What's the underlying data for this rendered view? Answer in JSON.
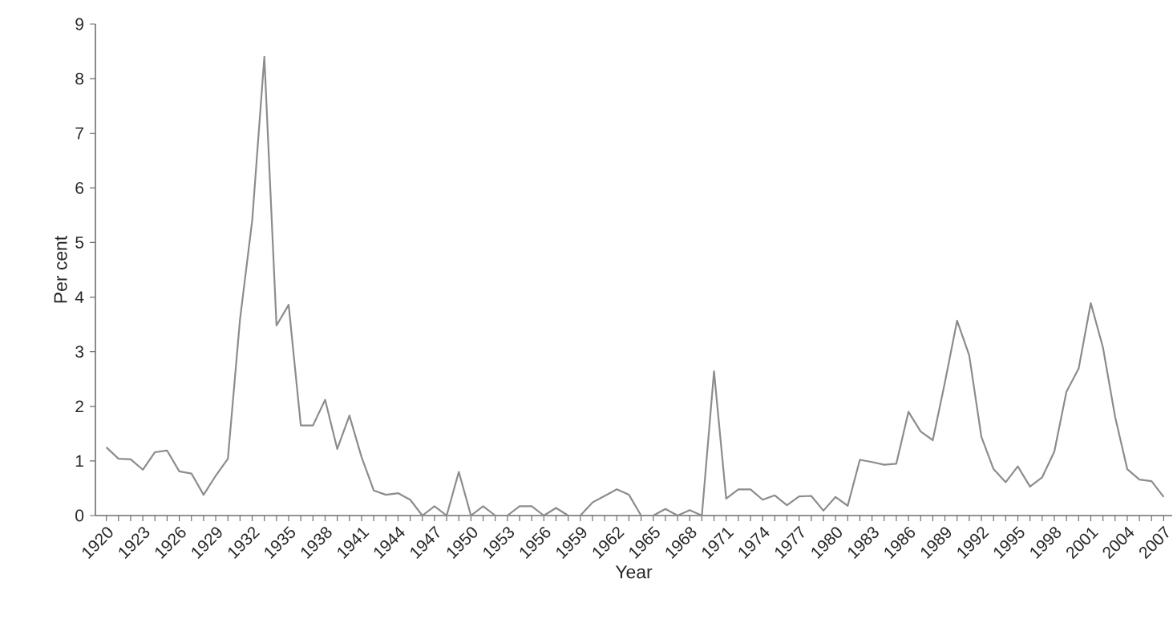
{
  "chart_data": {
    "type": "line",
    "xlabel": "Year",
    "ylabel": "Per cent",
    "x": [
      1920,
      1921,
      1922,
      1923,
      1924,
      1925,
      1926,
      1927,
      1928,
      1929,
      1930,
      1931,
      1932,
      1933,
      1934,
      1935,
      1936,
      1937,
      1938,
      1939,
      1940,
      1941,
      1942,
      1943,
      1944,
      1945,
      1946,
      1947,
      1948,
      1949,
      1950,
      1951,
      1952,
      1953,
      1954,
      1955,
      1956,
      1957,
      1958,
      1959,
      1960,
      1961,
      1962,
      1963,
      1964,
      1965,
      1966,
      1967,
      1968,
      1969,
      1970,
      1971,
      1972,
      1973,
      1974,
      1975,
      1976,
      1977,
      1978,
      1979,
      1980,
      1981,
      1982,
      1983,
      1984,
      1985,
      1986,
      1987,
      1988,
      1989,
      1990,
      1991,
      1992,
      1993,
      1994,
      1995,
      1996,
      1997,
      1998,
      1999,
      2000,
      2001,
      2002,
      2003,
      2004,
      2005,
      2006,
      2007
    ],
    "series": [
      {
        "color": "#8c8c8c",
        "values": [
          1.25,
          1.04,
          1.03,
          0.84,
          1.16,
          1.19,
          0.81,
          0.77,
          0.38,
          0.73,
          1.04,
          3.6,
          5.4,
          8.4,
          3.48,
          3.86,
          1.65,
          1.65,
          2.12,
          1.22,
          1.83,
          1.07,
          0.46,
          0.38,
          0.41,
          0.29,
          0.0,
          0.17,
          0.0,
          0.8,
          0.0,
          0.17,
          0.0,
          0.0,
          0.17,
          0.17,
          0.0,
          0.14,
          0.0,
          0.0,
          0.24,
          0.36,
          0.48,
          0.38,
          0.0,
          0.0,
          0.12,
          0.0,
          0.1,
          0.0,
          2.64,
          0.31,
          0.48,
          0.48,
          0.29,
          0.37,
          0.19,
          0.35,
          0.36,
          0.09,
          0.34,
          0.18,
          1.02,
          0.98,
          0.93,
          0.95,
          1.9,
          1.54,
          1.38,
          2.44,
          3.57,
          2.93,
          1.44,
          0.85,
          0.61,
          0.9,
          0.53,
          0.7,
          1.17,
          2.27,
          2.69,
          3.89,
          3.08,
          1.81,
          0.85,
          0.66,
          0.63,
          0.34
        ]
      }
    ],
    "xlim": [
      1919.1,
      2007.7
    ],
    "ylim": [
      0,
      9
    ],
    "yticks": [
      0,
      1,
      2,
      3,
      4,
      5,
      6,
      7,
      8,
      9
    ],
    "xticks": [
      1920,
      {
        "value": 1921,
        "label": null
      },
      {
        "value": 1922,
        "label": null
      },
      1923,
      {
        "value": 1924,
        "label": null
      },
      {
        "value": 1925,
        "label": null
      },
      1926,
      {
        "value": 1927,
        "label": null
      },
      {
        "value": 1928,
        "label": null
      },
      1929,
      {
        "value": 1930,
        "label": null
      },
      {
        "value": 1931,
        "label": null
      },
      1932,
      {
        "value": 1933,
        "label": null
      },
      {
        "value": 1934,
        "label": null
      },
      1935,
      {
        "value": 1936,
        "label": null
      },
      {
        "value": 1937,
        "label": null
      },
      1938,
      {
        "value": 1939,
        "label": null
      },
      {
        "value": 1940,
        "label": null
      },
      1941,
      {
        "value": 1942,
        "label": null
      },
      {
        "value": 1943,
        "label": null
      },
      1944,
      {
        "value": 1945,
        "label": null
      },
      {
        "value": 1946,
        "label": null
      },
      1947,
      {
        "value": 1948,
        "label": null
      },
      {
        "value": 1949,
        "label": null
      },
      1950,
      {
        "value": 1951,
        "label": null
      },
      {
        "value": 1952,
        "label": null
      },
      1953,
      {
        "value": 1954,
        "label": null
      },
      {
        "value": 1955,
        "label": null
      },
      1956,
      {
        "value": 1957,
        "label": null
      },
      {
        "value": 1958,
        "label": null
      },
      1959,
      {
        "value": 1960,
        "label": null
      },
      {
        "value": 1961,
        "label": null
      },
      1962,
      {
        "value": 1963,
        "label": null
      },
      {
        "value": 1964,
        "label": null
      },
      1965,
      {
        "value": 1966,
        "label": null
      },
      {
        "value": 1967,
        "label": null
      },
      1968,
      {
        "value": 1969,
        "label": null
      },
      {
        "value": 1970,
        "label": null
      },
      1971,
      {
        "value": 1972,
        "label": null
      },
      {
        "value": 1973,
        "label": null
      },
      1974,
      {
        "value": 1975,
        "label": null
      },
      {
        "value": 1976,
        "label": null
      },
      1977,
      {
        "value": 1978,
        "label": null
      },
      {
        "value": 1979,
        "label": null
      },
      1980,
      {
        "value": 1981,
        "label": null
      },
      {
        "value": 1982,
        "label": null
      },
      1983,
      {
        "value": 1984,
        "label": null
      },
      {
        "value": 1985,
        "label": null
      },
      1986,
      {
        "value": 1987,
        "label": null
      },
      {
        "value": 1988,
        "label": null
      },
      1989,
      {
        "value": 1990,
        "label": null
      },
      {
        "value": 1991,
        "label": null
      },
      1992,
      {
        "value": 1993,
        "label": null
      },
      {
        "value": 1994,
        "label": null
      },
      1995,
      {
        "value": 1996,
        "label": null
      },
      {
        "value": 1997,
        "label": null
      },
      1998,
      {
        "value": 1999,
        "label": null
      },
      {
        "value": 2000,
        "label": null
      },
      2001,
      {
        "value": 2002,
        "label": null
      },
      {
        "value": 2003,
        "label": null
      },
      2004,
      {
        "value": 2005,
        "label": null
      },
      {
        "value": 2006,
        "label": null
      },
      2007
    ]
  }
}
